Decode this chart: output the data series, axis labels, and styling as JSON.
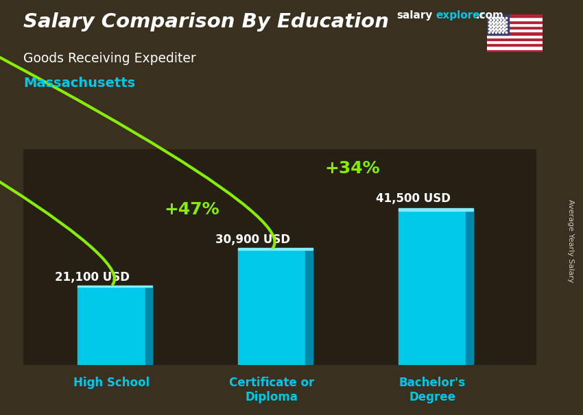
{
  "title_main": "Salary Comparison By Education",
  "title_sub": "Goods Receiving Expediter",
  "location": "Massachusetts",
  "categories": [
    "High School",
    "Certificate or\nDiploma",
    "Bachelor's\nDegree"
  ],
  "values": [
    21100,
    30900,
    41500
  ],
  "value_labels": [
    "21,100 USD",
    "30,900 USD",
    "41,500 USD"
  ],
  "bar_color_face": "#00c8e8",
  "bar_color_side": "#0088aa",
  "bar_color_top": "#80eeff",
  "pct_labels": [
    "+47%",
    "+34%"
  ],
  "background_color": "#3a3020",
  "text_color_white": "#ffffff",
  "text_color_cyan": "#00c8e8",
  "text_color_green": "#88ee00",
  "watermark_salary": "salary",
  "watermark_explorer": "explorer",
  "watermark_com": ".com",
  "ylabel": "Average Yearly Salary",
  "ylim": [
    0,
    58000
  ],
  "figsize": [
    8.5,
    6.06
  ],
  "dpi": 100
}
